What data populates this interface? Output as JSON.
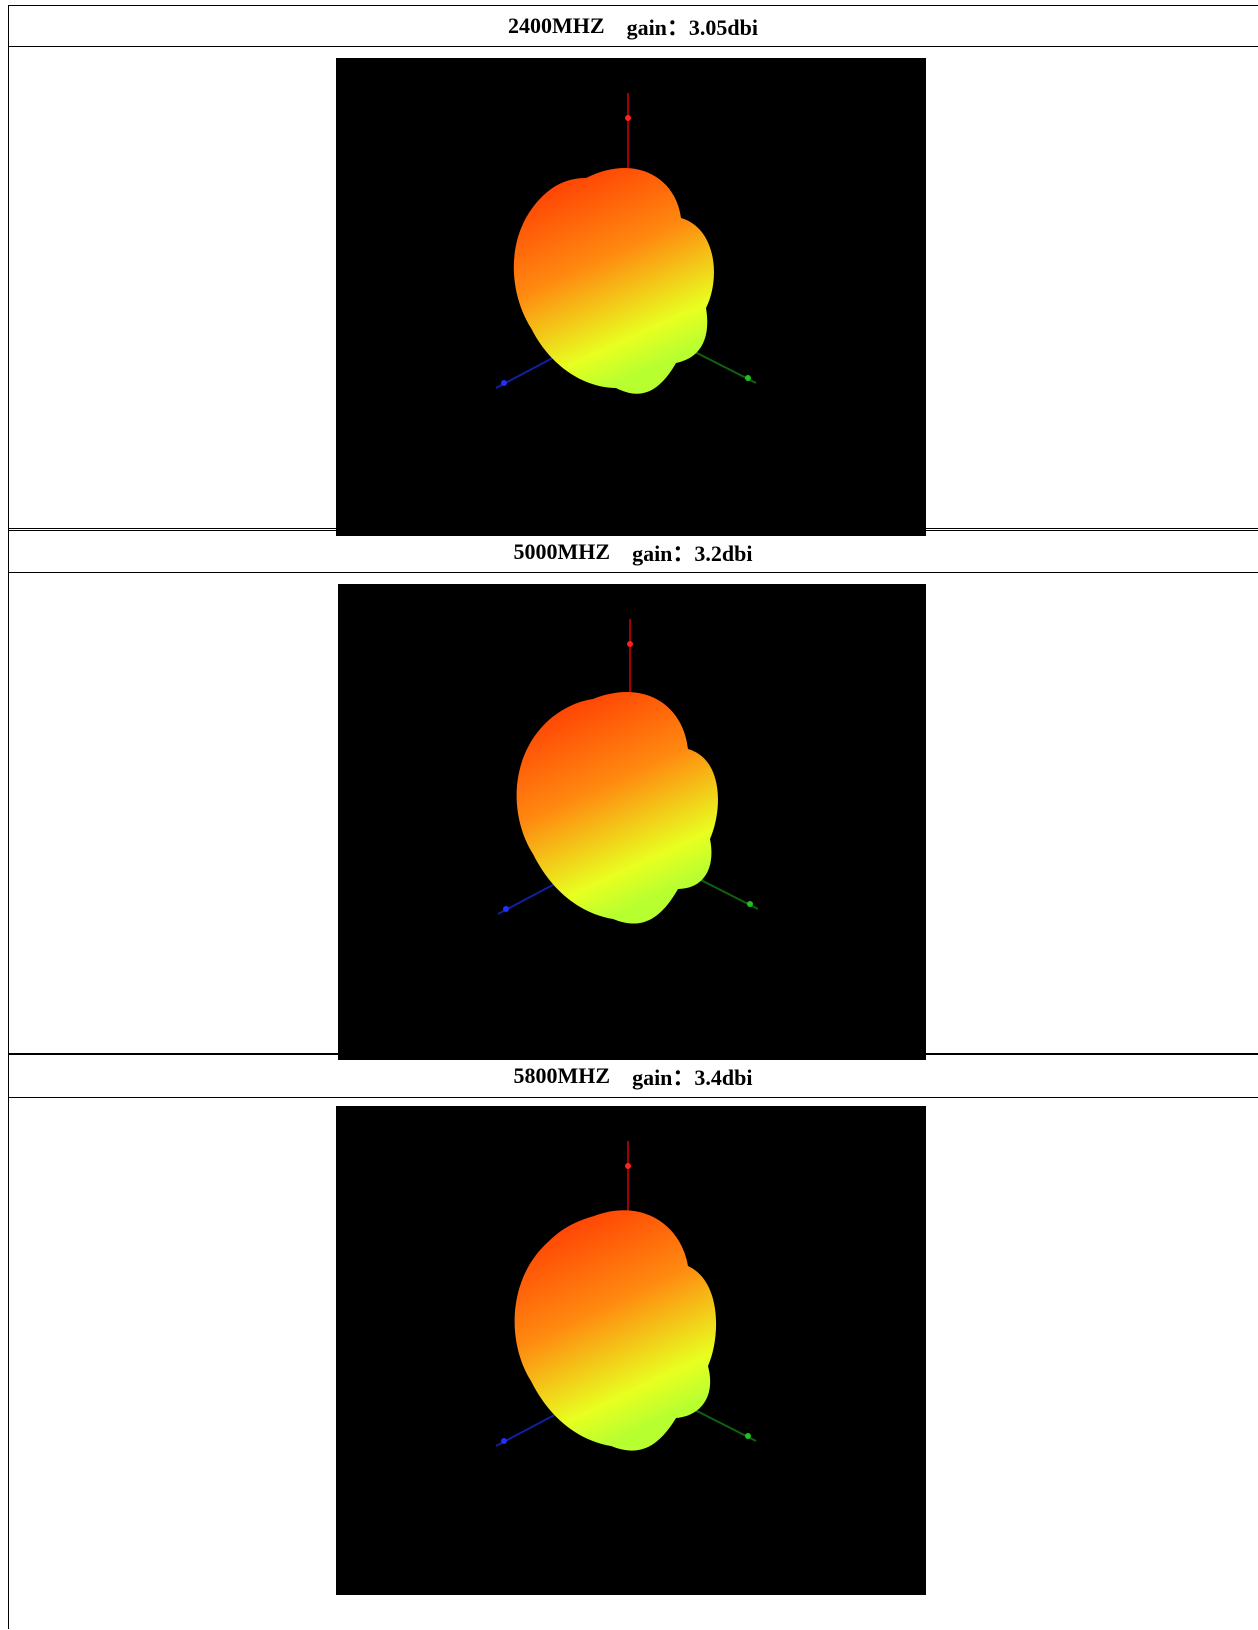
{
  "sections": [
    {
      "frequency": "2400MHZ",
      "gain_label": "gain：3.05dbi"
    },
    {
      "frequency": "5000MHZ",
      "gain_label": "gain：3.2dbi"
    },
    {
      "frequency": "5800MHZ",
      "gain_label": "gain：3.4dbi"
    }
  ]
}
